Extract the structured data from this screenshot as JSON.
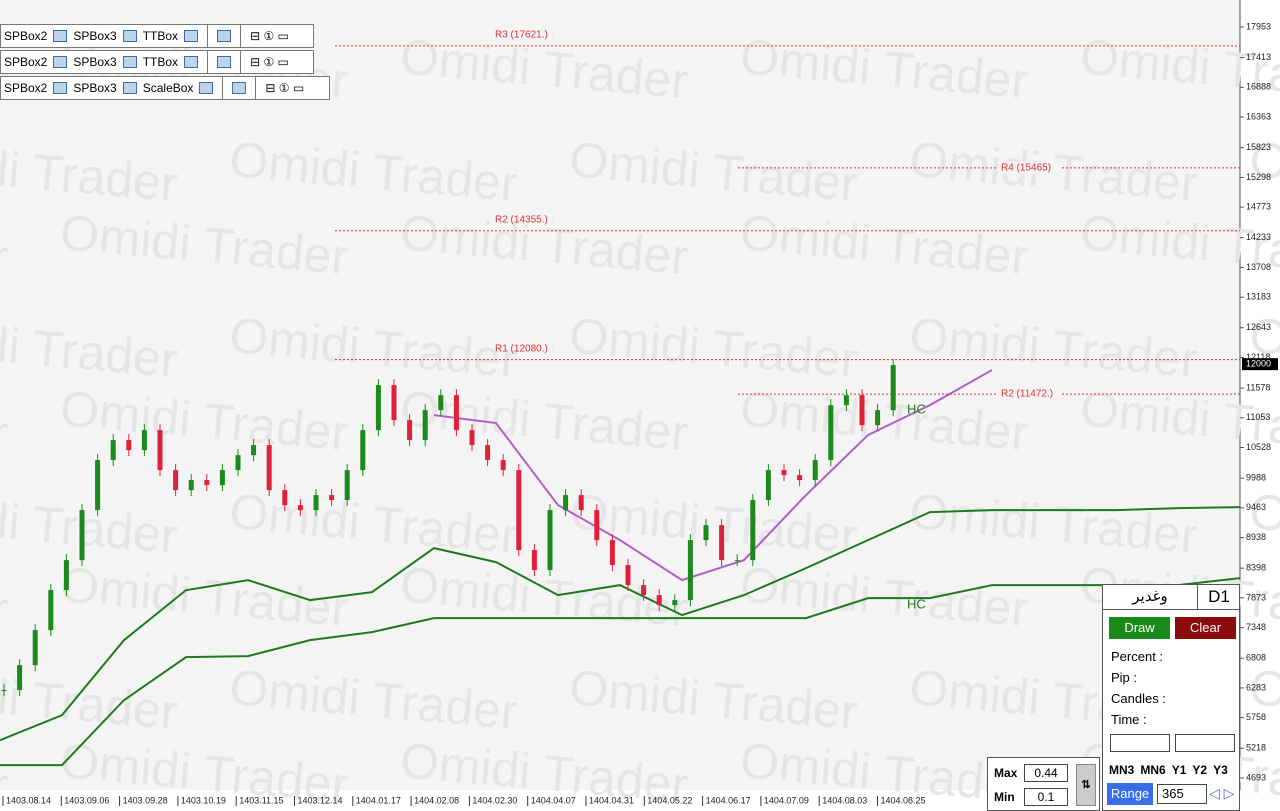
{
  "toolbar": {
    "rows": [
      [
        "SPBox2",
        "SPBox3",
        "TTBox"
      ],
      [
        "SPBox2",
        "SPBox3",
        "TTBox"
      ],
      [
        "SPBox2",
        "SPBox3",
        "ScaleBox"
      ]
    ]
  },
  "watermark": "Omidi Trader",
  "chart_data": {
    "type": "candlestick",
    "ylim": [
      4481,
      18430
    ],
    "yticks": [
      17953,
      17413,
      16888,
      16363,
      15823,
      15298,
      14773,
      14233,
      13708,
      13183,
      12643,
      12118,
      11578,
      11053,
      10528,
      9988,
      9463,
      8938,
      8398,
      7873,
      7348,
      6808,
      6283,
      5758,
      5218,
      4693
    ],
    "current_price": 12000,
    "xticks": [
      "1403.08.14",
      "1403.09.06",
      "1403.09.28",
      "1403.10.19",
      "1403.11.15",
      "1403.12.14",
      "1404.01.17",
      "1404.02.08",
      "1404.02.30",
      "1404.04.07",
      "1404.04.31",
      "1404.05.22",
      "1404.06.17",
      "1404.07.09",
      "1404.08.03",
      "1404.08.25"
    ],
    "values": [
      6245,
      6686,
      7304,
      8011,
      8540,
      9423,
      10306,
      10659,
      10482,
      10835,
      10129,
      9776,
      9953,
      9865,
      10129,
      10394,
      10571,
      9776,
      9511,
      9423,
      9688,
      9600,
      10129,
      10835,
      11630,
      11012,
      10659,
      11188,
      11453,
      10835,
      10571,
      10306,
      10129,
      8717,
      8364,
      9423,
      9688,
      9423,
      8893,
      8452,
      8099,
      7923,
      7746,
      7834,
      8893,
      9158,
      8540,
      8540,
      9600,
      10129,
      10041,
      9953,
      10306,
      11276,
      11453,
      10924,
      11188,
      11984
    ],
    "up_color": "#1a8a1a",
    "down_color": "#e0203a",
    "lines": [
      {
        "color": "#1f7a1f",
        "values": [
          4920,
          4920,
          6068,
          6827,
          6845,
          7127,
          7269,
          7516,
          7516,
          7516,
          7516,
          7516,
          7516,
          7516,
          7869,
          7869,
          8099,
          8099,
          8099,
          8099,
          8222
        ]
      },
      {
        "color": "#1f7a1f",
        "values": [
          5361,
          5803,
          7127,
          8010,
          8187,
          7834,
          7975,
          8752,
          8505,
          7922,
          8099,
          7569,
          7922,
          8399,
          8893,
          9388,
          9423,
          9423,
          9423,
          9459,
          9476
        ]
      },
      {
        "color": "#b060c8",
        "values": [
          null,
          null,
          null,
          null,
          null,
          null,
          null,
          11101,
          10960,
          9512,
          8893,
          8187,
          8540,
          9688,
          10748,
          11278,
          11896,
          null,
          null,
          null,
          null
        ]
      }
    ],
    "levels": [
      {
        "label": "R3 (17621.)",
        "value": 17621
      },
      {
        "label": "R4 (15465)",
        "value": 15465
      },
      {
        "label": "R2 (14355.)",
        "value": 14355
      },
      {
        "label": "R1 (12080.)",
        "value": 12080
      },
      {
        "label": "R2 (11472.)",
        "value": 11472
      }
    ],
    "level_color": "#e03030",
    "annotations": [
      "HC",
      "HC"
    ]
  },
  "panel": {
    "symbol": "وغدیر",
    "timeframe": "D1",
    "draw": "Draw",
    "clear": "Clear",
    "fields": [
      "Percent :",
      "Pip :",
      "Candles :",
      "Time :"
    ],
    "periods": [
      "MN3",
      "MN6",
      "Y1",
      "Y2",
      "Y3"
    ],
    "range": "Range",
    "range_value": 365
  },
  "maxmin": {
    "max_label": "Max",
    "max": 0.44,
    "min_label": "Min",
    "min": 0.1
  }
}
